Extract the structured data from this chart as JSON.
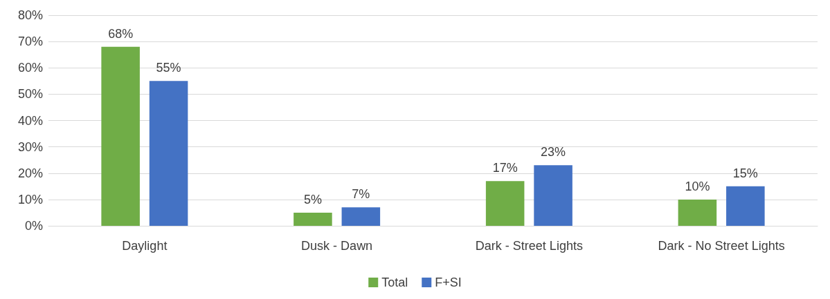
{
  "chart_data": {
    "type": "bar",
    "categories": [
      "Daylight",
      "Dusk - Dawn",
      "Dark - Street Lights",
      "Dark - No Street Lights"
    ],
    "series": [
      {
        "name": "Total",
        "color": "#70ad47",
        "values": [
          68,
          5,
          17,
          10
        ],
        "value_labels": [
          "68%",
          "5%",
          "17%",
          "10%"
        ]
      },
      {
        "name": "F+SI",
        "color": "#4472c4",
        "values": [
          55,
          7,
          23,
          15
        ],
        "value_labels": [
          "55%",
          "7%",
          "23%",
          "15%"
        ]
      }
    ],
    "ylim": [
      0,
      80
    ],
    "yticks": [
      {
        "value": 0,
        "label": "0%"
      },
      {
        "value": 10,
        "label": "10%"
      },
      {
        "value": 20,
        "label": "20%"
      },
      {
        "value": 30,
        "label": "30%"
      },
      {
        "value": 40,
        "label": "40%"
      },
      {
        "value": 50,
        "label": "50%"
      },
      {
        "value": 60,
        "label": "60%"
      },
      {
        "value": 70,
        "label": "70%"
      },
      {
        "value": 80,
        "label": "80%"
      }
    ],
    "grid": "y",
    "legend": "bottom"
  }
}
